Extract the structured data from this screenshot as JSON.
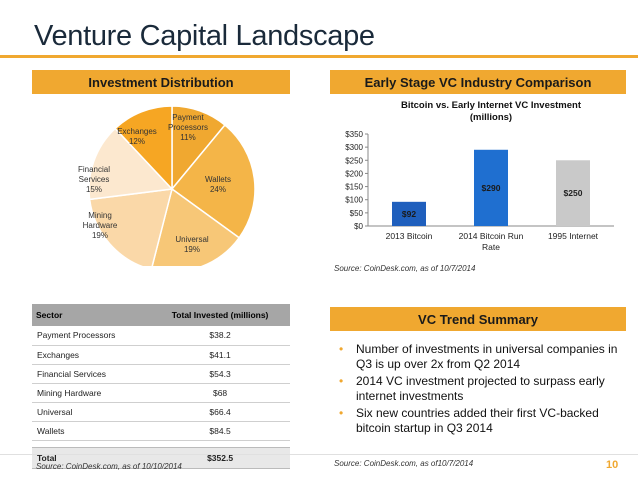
{
  "title": "Venture Capital Landscape",
  "page_number": "10",
  "accent_color": "#f0a830",
  "left_header": "Investment Distribution",
  "right_header": "Early Stage VC Industry Comparison",
  "trend_header": "VC Trend Summary",
  "source_bar": "Source:  CoinDesk.com, as of 10/7/2014",
  "source_table": "Source: CoinDesk.com, as of 10/10/2014",
  "source_trend": "Source:  CoinDesk.com, as of10/7/2014",
  "table": {
    "headers": [
      "Sector",
      "Total Invested (millions)"
    ],
    "rows": [
      [
        "Payment Processors",
        "$38.2"
      ],
      [
        "Exchanges",
        "$41.1"
      ],
      [
        "Financial Services",
        "$54.3"
      ],
      [
        "Mining Hardware",
        "$68"
      ],
      [
        "Universal",
        "$66.4"
      ],
      [
        "Wallets",
        "$84.5"
      ]
    ],
    "total": [
      "Total",
      "$352.5"
    ]
  },
  "bullets": [
    "Number of investments in universal companies in Q3 is up over 2x from Q2 2014",
    "2014 VC investment projected to surpass early internet investments",
    "Six new countries added their first VC-backed bitcoin startup in Q3 2014"
  ],
  "chart_data": [
    {
      "type": "pie",
      "slices": [
        {
          "label": "Payment Processors",
          "pct_label": "11%",
          "value": 11,
          "color": "#f0a830"
        },
        {
          "label": "Wallets",
          "pct_label": "24%",
          "value": 24,
          "color": "#f4b548"
        },
        {
          "label": "Universal",
          "pct_label": "19%",
          "value": 19,
          "color": "#f7c777"
        },
        {
          "label": "Mining Hardware",
          "pct_label": "19%",
          "value": 19,
          "color": "#fad8a8"
        },
        {
          "label": "Financial Services",
          "pct_label": "15%",
          "value": 15,
          "color": "#fce8cf"
        },
        {
          "label": "Exchanges",
          "pct_label": "12%",
          "value": 12,
          "color": "#f6a623"
        }
      ]
    },
    {
      "type": "bar",
      "title": "Bitcoin vs. Early Internet VC Investment (millions)",
      "categories": [
        "2013 Bitcoin",
        "2014 Bitcoin Run Rate",
        "1995 Internet"
      ],
      "values": [
        92,
        290,
        250
      ],
      "value_labels": [
        "$92",
        "$290",
        "$250"
      ],
      "colors": [
        "#1f5fbd",
        "#1f6fd0",
        "#c9c9c9"
      ],
      "ylim": [
        0,
        350
      ],
      "yticks": [
        "$0",
        "$50",
        "$100",
        "$150",
        "$200",
        "$250",
        "$300",
        "$350"
      ],
      "grid": false
    }
  ]
}
